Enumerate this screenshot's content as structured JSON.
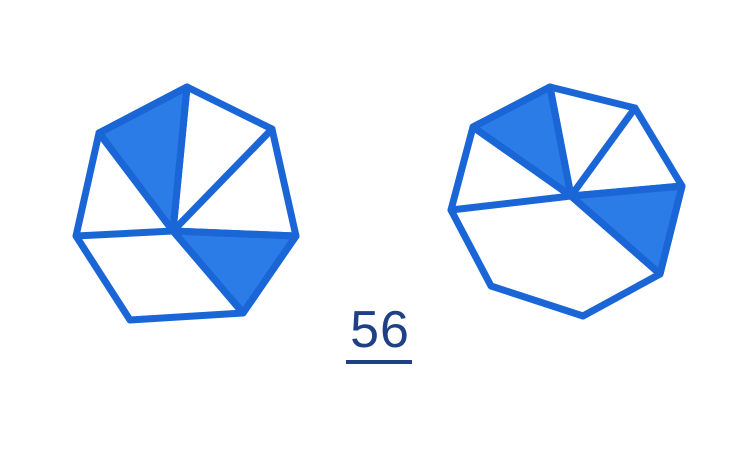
{
  "colors": {
    "outline": "#1a66d6",
    "shaded": "#2b7ce6",
    "unshaded": "#ffffff",
    "number": "#1f3f86"
  },
  "figures": [
    {
      "name": "left-heptagon",
      "shaded_sectors": 2
    },
    {
      "name": "right-octagon",
      "shaded_sectors": 2
    }
  ],
  "number": "56"
}
